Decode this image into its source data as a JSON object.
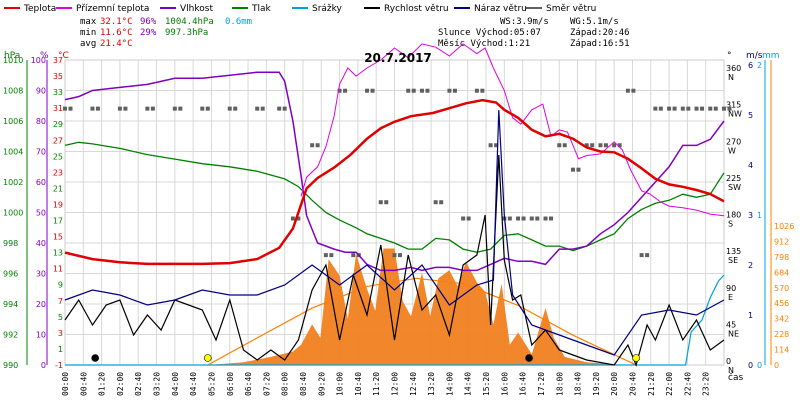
{
  "chart_data": {
    "type": "line",
    "title": "20.7.2017",
    "colors": {
      "teplota": "#e00000",
      "pocitova": "#e000e0",
      "vlhkost": "#8000c0",
      "tlak": "#008000",
      "srazky": "#00a0e0",
      "vitr": "#000000",
      "naraz": "#000080",
      "smer": "#606060",
      "radiace": "#ff8000",
      "radiace_fill": "#f08020"
    },
    "legend": [
      {
        "label": "Teplota",
        "color": "#e00000"
      },
      {
        "label": "Přízemní teplota",
        "color": "#e000e0"
      },
      {
        "label": "Vlhkost",
        "color": "#8000c0"
      },
      {
        "label": "Tlak",
        "color": "#008000"
      },
      {
        "label": "Srážky",
        "color": "#00a0e0"
      },
      {
        "label": "Rychlost větru",
        "color": "#000000"
      },
      {
        "label": "Náraz větru",
        "color": "#000080"
      },
      {
        "label": "Směr větru",
        "color": "#606060"
      }
    ],
    "stats": {
      "max_label": "max",
      "max_temp": "32.1°C",
      "max_hum": "96%",
      "max_press": "1004.4hPa",
      "rain": "0.6mm",
      "min_label": "min",
      "min_temp": "11.6°C",
      "min_hum": "29%",
      "min_press": "997.3hPa",
      "avg_label": "avg",
      "avg_temp": "21.4°C"
    },
    "info": {
      "ws": "WS:3.9m/s",
      "wg": "WG:5.1m/s",
      "sun": "Slunce Východ:05:07",
      "sun_set": "Západ:20:46",
      "moon": "Měsíc  Východ:1:21",
      "moon_set": "Západ:16:51"
    },
    "axes": {
      "hpa_unit": "hPa",
      "pct_unit": "%",
      "c_unit": "°C",
      "hpa_ticks": [
        "990",
        "992",
        "994",
        "996",
        "998",
        "1000",
        "1002",
        "1004",
        "1006",
        "1008",
        "1010"
      ],
      "pct_ticks": [
        "0",
        "10",
        "20",
        "30",
        "40",
        "50",
        "60",
        "70",
        "80",
        "90",
        "100"
      ],
      "c_ticks": [
        "-1",
        "3",
        "7",
        "11",
        "15",
        "19",
        "23",
        "27",
        "31",
        "35",
        "37"
      ],
      "c_ticks_green": [
        "1",
        "5",
        "9",
        "13",
        "17",
        "21",
        "25",
        "29",
        "33"
      ],
      "dir_unit": "°",
      "dir_ticks": [
        {
          "deg": "0",
          "lbl": "N"
        },
        {
          "deg": "45",
          "lbl": "NE"
        },
        {
          "deg": "90",
          "lbl": "E"
        },
        {
          "deg": "135",
          "lbl": "SE"
        },
        {
          "deg": "180",
          "lbl": "S"
        },
        {
          "deg": "225",
          "lbl": "SW"
        },
        {
          "deg": "270",
          "lbl": "W"
        },
        {
          "deg": "315",
          "lbl": "NW"
        },
        {
          "deg": "360",
          "lbl": "N"
        }
      ],
      "ms_unit": "m/s",
      "mm_unit": "mm",
      "ms_ticks": [
        "0",
        "1",
        "2",
        "3",
        "4",
        "5",
        "6"
      ],
      "mm_ticks": [
        "0",
        "1",
        "2"
      ],
      "wm_ticks": [
        "0",
        "114",
        "228",
        "342",
        "456",
        "570",
        "684",
        "798",
        "912",
        "1026"
      ],
      "x_label": "čas",
      "x_ticks": [
        "00:00",
        "00:40",
        "01:20",
        "02:00",
        "02:40",
        "03:20",
        "04:00",
        "04:40",
        "05:20",
        "06:00",
        "06:40",
        "07:20",
        "08:00",
        "08:40",
        "09:20",
        "10:00",
        "10:40",
        "11:20",
        "12:00",
        "12:40",
        "13:20",
        "14:00",
        "14:40",
        "15:20",
        "16:00",
        "16:40",
        "17:20",
        "18:00",
        "18:40",
        "19:20",
        "20:00",
        "20:40",
        "21:20",
        "22:00",
        "22:40",
        "23:20"
      ]
    },
    "temperature_c": [
      [
        0,
        13
      ],
      [
        1,
        12.2
      ],
      [
        2,
        11.8
      ],
      [
        3,
        11.6
      ],
      [
        4,
        11.6
      ],
      [
        5,
        11.6
      ],
      [
        6,
        11.7
      ],
      [
        7,
        12.2
      ],
      [
        7.8,
        13.6
      ],
      [
        8.3,
        16
      ],
      [
        8.6,
        19
      ],
      [
        8.8,
        21
      ],
      [
        9.2,
        22.3
      ],
      [
        9.8,
        23.6
      ],
      [
        10.4,
        25.2
      ],
      [
        11,
        27.2
      ],
      [
        11.5,
        28.5
      ],
      [
        12,
        29.3
      ],
      [
        12.6,
        30
      ],
      [
        13.4,
        30.4
      ],
      [
        14,
        31
      ],
      [
        14.6,
        31.6
      ],
      [
        15.2,
        32
      ],
      [
        15.7,
        31.7
      ],
      [
        16,
        30.8
      ],
      [
        16.5,
        29.8
      ],
      [
        17,
        28.3
      ],
      [
        17.5,
        27.5
      ],
      [
        18,
        27.8
      ],
      [
        18.5,
        27.2
      ],
      [
        19,
        26.1
      ],
      [
        19.5,
        25.6
      ],
      [
        20,
        25.5
      ],
      [
        20.5,
        24.7
      ],
      [
        21,
        23.5
      ],
      [
        21.5,
        22.2
      ],
      [
        22,
        21.5
      ],
      [
        22.5,
        21.2
      ],
      [
        23,
        20.8
      ],
      [
        23.5,
        20.3
      ],
      [
        24,
        19.4
      ]
    ],
    "ground_temp_c": [
      [
        8.6,
        20
      ],
      [
        8.8,
        22.4
      ],
      [
        9.2,
        23.7
      ],
      [
        9.5,
        26.2
      ],
      [
        9.8,
        30
      ],
      [
        10,
        34
      ],
      [
        10.3,
        36
      ],
      [
        10.6,
        35
      ],
      [
        11,
        36
      ],
      [
        11.5,
        37
      ],
      [
        12,
        38.5
      ],
      [
        12.5,
        37.3
      ],
      [
        13,
        39
      ],
      [
        13.5,
        38.6
      ],
      [
        14,
        37.5
      ],
      [
        14.5,
        39
      ],
      [
        15,
        37.8
      ],
      [
        15.3,
        38.5
      ],
      [
        15.6,
        36
      ],
      [
        16,
        33.2
      ],
      [
        16.3,
        29.8
      ],
      [
        16.6,
        29
      ],
      [
        17,
        30.8
      ],
      [
        17.4,
        31.5
      ],
      [
        17.7,
        27.5
      ],
      [
        18,
        28.3
      ],
      [
        18.3,
        28
      ],
      [
        18.7,
        24.7
      ],
      [
        19,
        25.1
      ],
      [
        19.5,
        25.3
      ],
      [
        20,
        26.8
      ],
      [
        20.3,
        25.8
      ],
      [
        20.6,
        23.3
      ],
      [
        21,
        20.7
      ],
      [
        21.3,
        20.3
      ],
      [
        21.7,
        19.3
      ],
      [
        22,
        18.8
      ],
      [
        22.5,
        18.6
      ],
      [
        23,
        18.3
      ],
      [
        23.5,
        17.8
      ],
      [
        24,
        17.6
      ]
    ],
    "humidity_pct": [
      [
        0,
        87
      ],
      [
        0.5,
        88
      ],
      [
        1,
        90
      ],
      [
        2,
        91
      ],
      [
        3,
        92
      ],
      [
        4,
        94
      ],
      [
        5,
        94
      ],
      [
        6,
        95
      ],
      [
        7,
        96
      ],
      [
        7.8,
        96
      ],
      [
        8,
        93
      ],
      [
        8.3,
        80
      ],
      [
        8.6,
        62
      ],
      [
        8.8,
        49
      ],
      [
        9.2,
        40
      ],
      [
        9.8,
        38
      ],
      [
        10.2,
        37
      ],
      [
        10.6,
        37
      ],
      [
        11,
        33
      ],
      [
        11.5,
        31
      ],
      [
        12,
        31
      ],
      [
        12.6,
        32
      ],
      [
        13,
        31
      ],
      [
        13.5,
        32
      ],
      [
        14,
        32
      ],
      [
        14.5,
        31
      ],
      [
        15,
        31
      ],
      [
        15.5,
        33
      ],
      [
        16,
        35
      ],
      [
        16.5,
        34
      ],
      [
        17,
        34
      ],
      [
        17.5,
        33
      ],
      [
        18,
        38
      ],
      [
        18.5,
        38
      ],
      [
        19,
        39
      ],
      [
        19.5,
        43
      ],
      [
        20,
        46
      ],
      [
        20.5,
        50
      ],
      [
        21,
        55
      ],
      [
        21.5,
        60
      ],
      [
        22,
        65
      ],
      [
        22.5,
        72
      ],
      [
        23,
        72
      ],
      [
        23.5,
        74
      ],
      [
        24,
        80
      ]
    ],
    "pressure_hpa": [
      [
        0,
        1004.4
      ],
      [
        0.5,
        1004.6
      ],
      [
        1,
        1004.5
      ],
      [
        2,
        1004.2
      ],
      [
        3,
        1003.8
      ],
      [
        4,
        1003.5
      ],
      [
        5,
        1003.2
      ],
      [
        6,
        1003.0
      ],
      [
        7,
        1002.7
      ],
      [
        8,
        1002.2
      ],
      [
        8.5,
        1001.7
      ],
      [
        9,
        1000.8
      ],
      [
        9.5,
        1000.0
      ],
      [
        10,
        999.5
      ],
      [
        10.6,
        999.0
      ],
      [
        11,
        998.6
      ],
      [
        11.5,
        998.3
      ],
      [
        12,
        998.0
      ],
      [
        12.5,
        997.6
      ],
      [
        13,
        997.6
      ],
      [
        13.5,
        998.3
      ],
      [
        14,
        998.2
      ],
      [
        14.5,
        997.6
      ],
      [
        15,
        997.4
      ],
      [
        15.5,
        997.6
      ],
      [
        16,
        998.5
      ],
      [
        16.5,
        998.6
      ],
      [
        17,
        998.2
      ],
      [
        17.5,
        997.8
      ],
      [
        18,
        997.8
      ],
      [
        18.5,
        997.5
      ],
      [
        19,
        997.8
      ],
      [
        19.5,
        998.2
      ],
      [
        20,
        998.6
      ],
      [
        20.5,
        999.6
      ],
      [
        21,
        1000.2
      ],
      [
        21.5,
        1000.6
      ],
      [
        22,
        1000.8
      ],
      [
        22.5,
        1001.2
      ],
      [
        23,
        1001.0
      ],
      [
        23.5,
        1001.2
      ],
      [
        24,
        1002.6
      ]
    ],
    "rain_mm": [
      [
        0,
        0
      ],
      [
        22.6,
        0
      ],
      [
        22.8,
        0.22
      ],
      [
        23.2,
        0.3
      ],
      [
        23.5,
        0.45
      ],
      [
        23.8,
        0.56
      ],
      [
        24,
        0.6
      ]
    ],
    "wind_ms": [
      [
        0,
        0.9
      ],
      [
        0.5,
        1.3
      ],
      [
        1,
        0.8
      ],
      [
        1.5,
        1.2
      ],
      [
        2,
        1.3
      ],
      [
        2.5,
        0.6
      ],
      [
        3,
        1.0
      ],
      [
        3.5,
        0.7
      ],
      [
        4,
        1.3
      ],
      [
        4.5,
        1.2
      ],
      [
        5,
        1.1
      ],
      [
        5.5,
        0.5
      ],
      [
        6,
        1.3
      ],
      [
        6.5,
        0.3
      ],
      [
        7,
        0.1
      ],
      [
        7.5,
        0.3
      ],
      [
        8,
        0.1
      ],
      [
        8.5,
        0.5
      ],
      [
        9,
        1.5
      ],
      [
        9.5,
        2.0
      ],
      [
        10,
        0.5
      ],
      [
        10.5,
        1.8
      ],
      [
        11,
        1.0
      ],
      [
        11.5,
        2.4
      ],
      [
        12,
        0.5
      ],
      [
        12.5,
        2.2
      ],
      [
        13,
        1.1
      ],
      [
        13.5,
        1.4
      ],
      [
        14,
        0.6
      ],
      [
        14.5,
        2.0
      ],
      [
        15,
        2.2
      ],
      [
        15.3,
        3.0
      ],
      [
        15.5,
        0.8
      ],
      [
        15.8,
        4.2
      ],
      [
        16,
        2.1
      ],
      [
        16.3,
        1.3
      ],
      [
        16.6,
        1.4
      ],
      [
        17,
        0.4
      ],
      [
        17.5,
        0.7
      ],
      [
        18,
        0.3
      ],
      [
        18.5,
        0.2
      ],
      [
        19,
        0.1
      ],
      [
        20,
        0.0
      ],
      [
        20.5,
        0.4
      ],
      [
        20.8,
        0.0
      ],
      [
        21.2,
        0.8
      ],
      [
        21.5,
        0.5
      ],
      [
        22,
        1.2
      ],
      [
        22.5,
        0.5
      ],
      [
        23,
        0.9
      ],
      [
        23.5,
        0.3
      ],
      [
        24,
        0.5
      ]
    ],
    "gust_ms": [
      [
        0,
        1.3
      ],
      [
        1,
        1.5
      ],
      [
        2,
        1.4
      ],
      [
        3,
        1.2
      ],
      [
        4,
        1.3
      ],
      [
        5,
        1.5
      ],
      [
        6,
        1.4
      ],
      [
        7,
        1.4
      ],
      [
        8,
        1.6
      ],
      [
        9,
        2.0
      ],
      [
        10,
        1.6
      ],
      [
        11,
        2.0
      ],
      [
        12,
        1.5
      ],
      [
        13,
        2.0
      ],
      [
        14,
        1.2
      ],
      [
        15,
        1.6
      ],
      [
        15.6,
        1.7
      ],
      [
        15.8,
        5.1
      ],
      [
        16,
        3.0
      ],
      [
        16.3,
        1.4
      ],
      [
        17,
        0.8
      ],
      [
        18,
        0.6
      ],
      [
        19,
        0.4
      ],
      [
        20,
        0.2
      ],
      [
        21,
        1.0
      ],
      [
        22,
        1.1
      ],
      [
        23,
        1.0
      ],
      [
        24,
        1.3
      ]
    ],
    "wind_dir_deg": [
      [
        0,
        315
      ],
      [
        1,
        315
      ],
      [
        2,
        315
      ],
      [
        3,
        315
      ],
      [
        4,
        315
      ],
      [
        5,
        315
      ],
      [
        6,
        315
      ],
      [
        7,
        315
      ],
      [
        7.8,
        315
      ],
      [
        8.3,
        180
      ],
      [
        9,
        270
      ],
      [
        9.5,
        135
      ],
      [
        10,
        337
      ],
      [
        10.5,
        135
      ],
      [
        11,
        337
      ],
      [
        11.5,
        200
      ],
      [
        12,
        135
      ],
      [
        12.5,
        337
      ],
      [
        13,
        337
      ],
      [
        13.5,
        200
      ],
      [
        14,
        337
      ],
      [
        14.5,
        180
      ],
      [
        15,
        337
      ],
      [
        15.5,
        270
      ],
      [
        16,
        180
      ],
      [
        16.5,
        180
      ],
      [
        17,
        180
      ],
      [
        17.5,
        180
      ],
      [
        18,
        270
      ],
      [
        18.5,
        240
      ],
      [
        19,
        270
      ],
      [
        19.5,
        270
      ],
      [
        20,
        270
      ],
      [
        20.5,
        337
      ],
      [
        21,
        135
      ],
      [
        21.5,
        315
      ],
      [
        22,
        315
      ],
      [
        22.5,
        315
      ],
      [
        23,
        315
      ],
      [
        23.5,
        315
      ],
      [
        24,
        315
      ]
    ],
    "solar_wm2": [
      [
        0,
        0
      ],
      [
        5.2,
        0
      ],
      [
        6.5,
        20
      ],
      [
        7.5,
        60
      ],
      [
        8.3,
        100
      ],
      [
        8.6,
        150
      ],
      [
        9,
        300
      ],
      [
        9.3,
        200
      ],
      [
        9.6,
        780
      ],
      [
        10,
        660
      ],
      [
        10.3,
        340
      ],
      [
        10.6,
        820
      ],
      [
        11,
        560
      ],
      [
        11.3,
        400
      ],
      [
        11.6,
        860
      ],
      [
        12,
        860
      ],
      [
        12.3,
        470
      ],
      [
        12.6,
        360
      ],
      [
        13,
        680
      ],
      [
        13.3,
        360
      ],
      [
        13.6,
        640
      ],
      [
        14,
        700
      ],
      [
        14.3,
        580
      ],
      [
        14.6,
        760
      ],
      [
        15,
        610
      ],
      [
        15.3,
        540
      ],
      [
        15.6,
        300
      ],
      [
        15.9,
        600
      ],
      [
        16.2,
        150
      ],
      [
        16.5,
        240
      ],
      [
        17,
        80
      ],
      [
        17.5,
        420
      ],
      [
        17.8,
        200
      ],
      [
        18.2,
        60
      ],
      [
        19,
        20
      ],
      [
        20,
        5
      ],
      [
        20.8,
        0
      ],
      [
        24,
        0
      ]
    ],
    "solar_theoretical": [
      [
        5.2,
        0
      ],
      [
        7,
        200
      ],
      [
        9,
        420
      ],
      [
        11,
        580
      ],
      [
        12.8,
        640
      ],
      [
        14.5,
        600
      ],
      [
        16.5,
        440
      ],
      [
        18.5,
        220
      ],
      [
        20.8,
        0
      ]
    ],
    "markers": [
      {
        "x": 1.1,
        "color": "#000000"
      },
      {
        "x": 5.2,
        "color": "#ffff00"
      },
      {
        "x": 16.9,
        "color": "#000000"
      },
      {
        "x": 20.8,
        "color": "#ffff00"
      }
    ]
  }
}
